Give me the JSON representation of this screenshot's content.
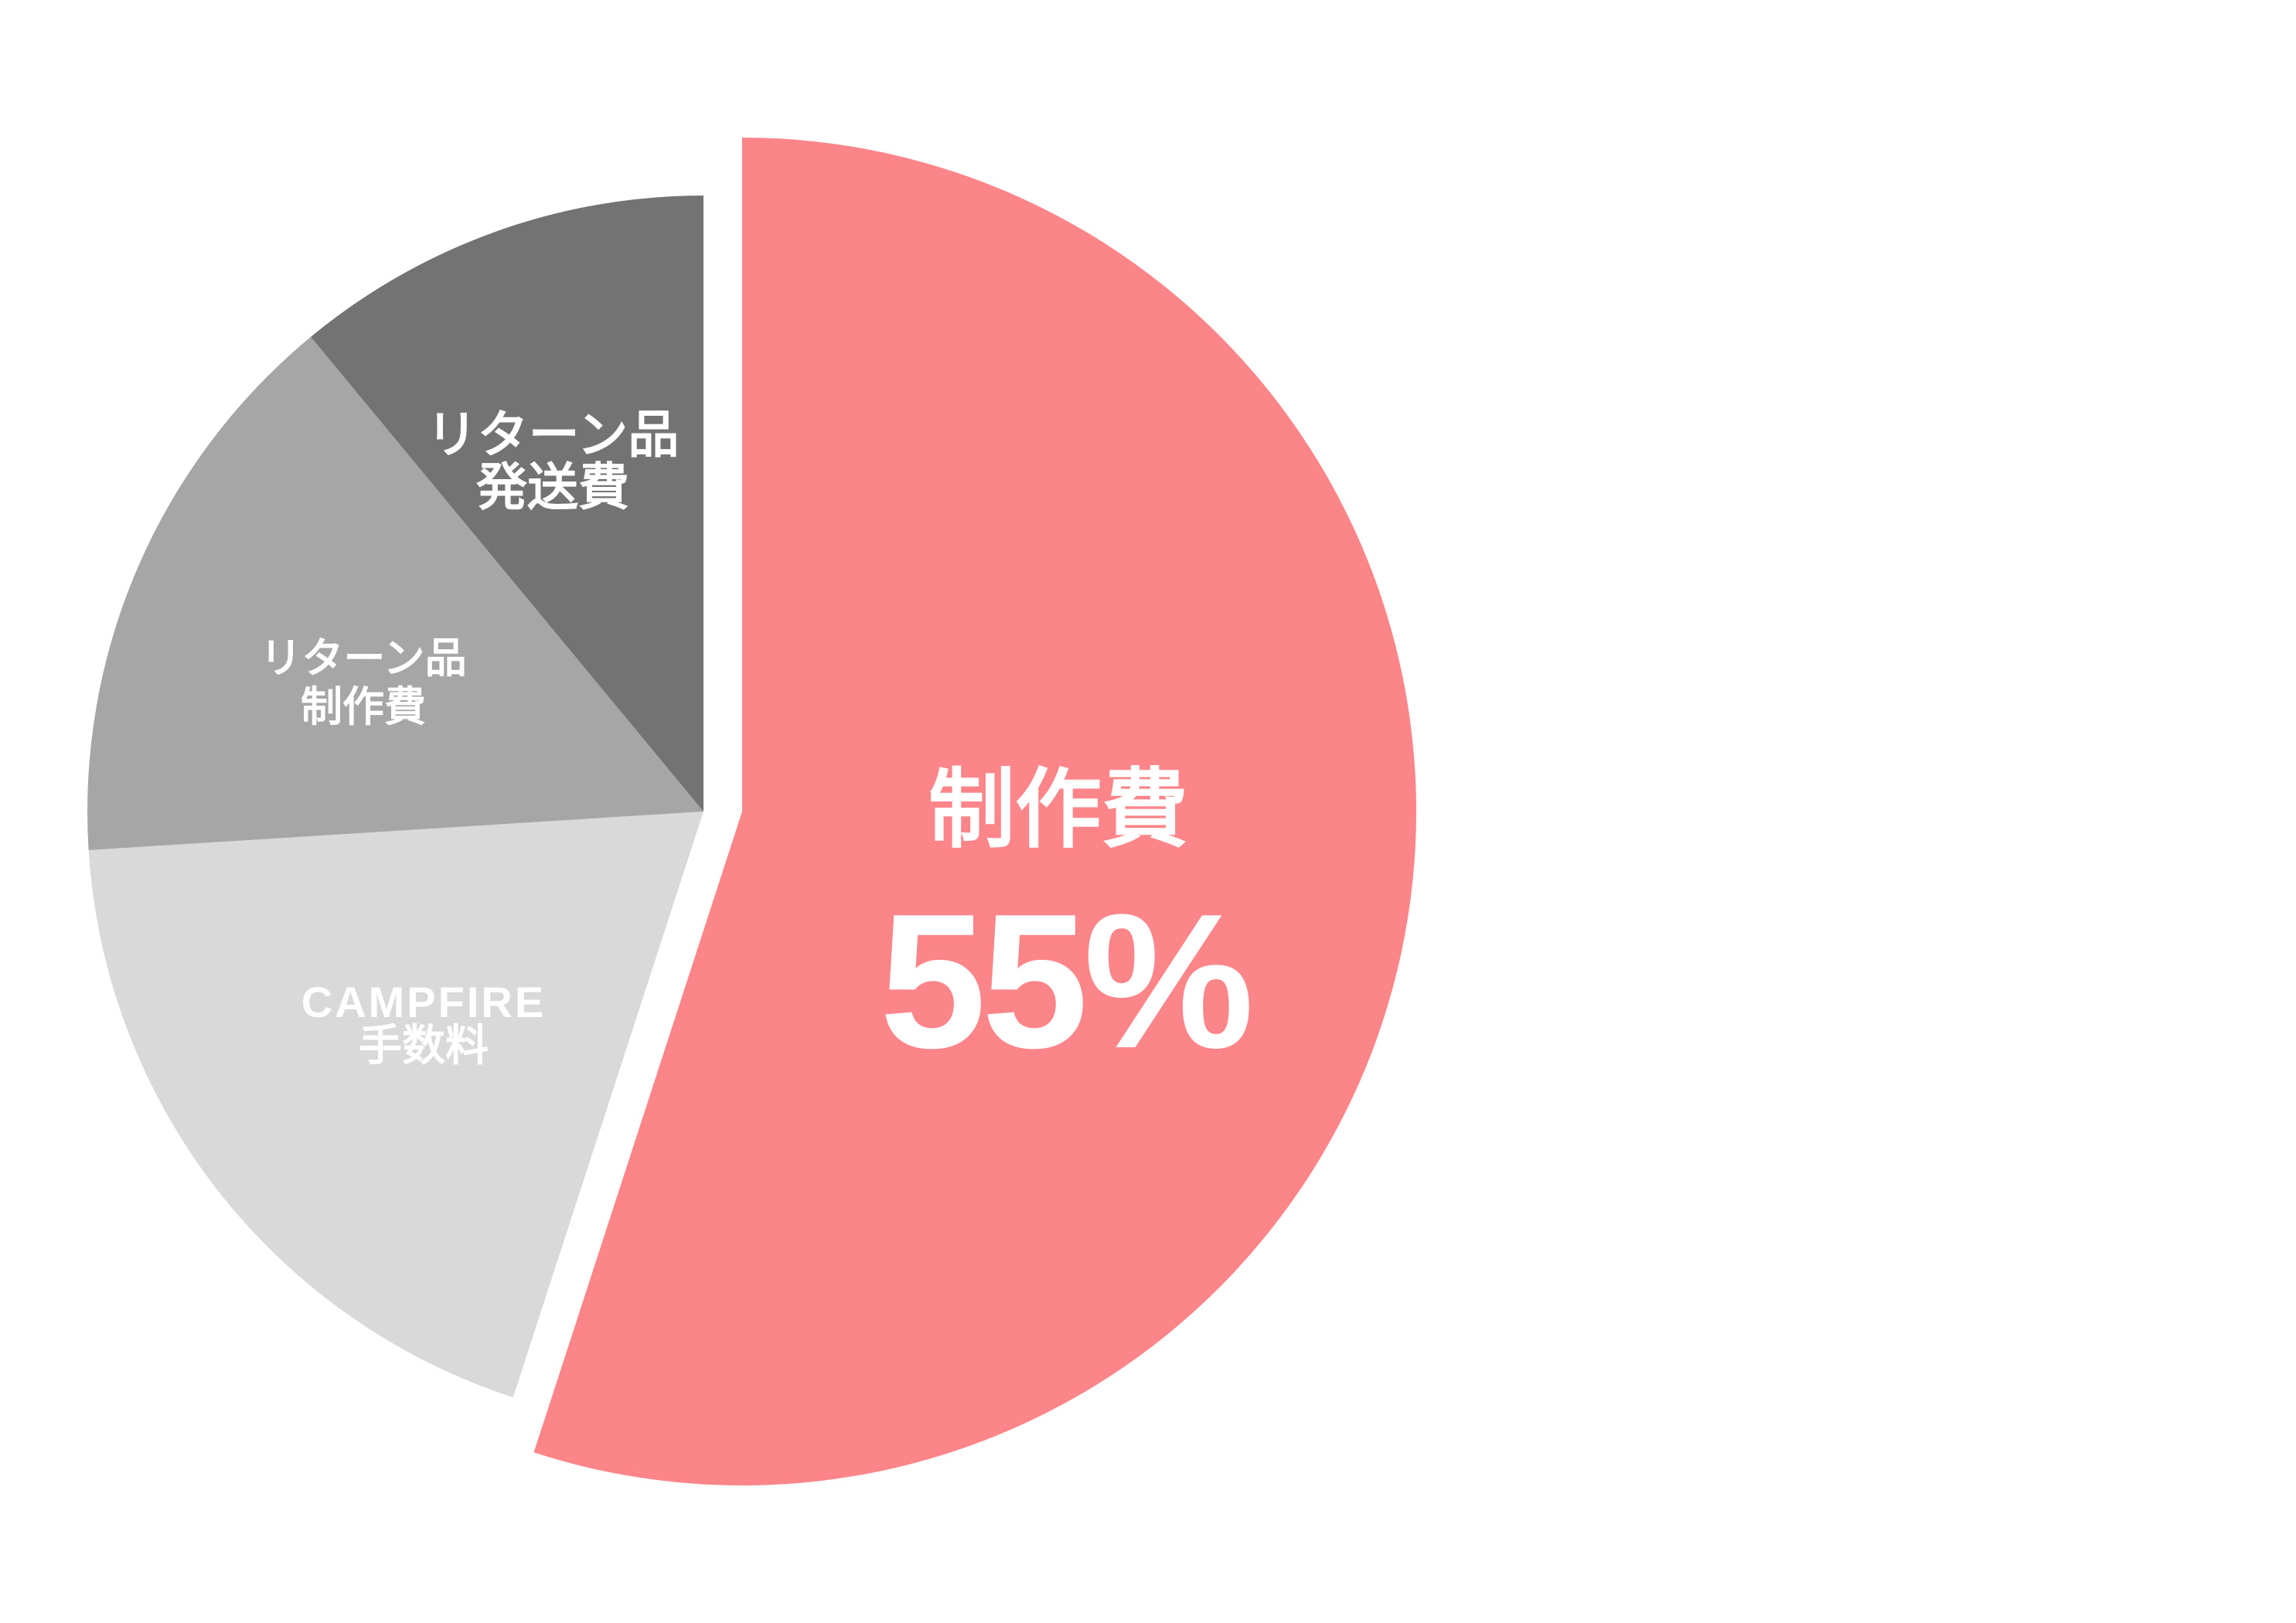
{
  "page": {
    "background_color": "#FFFFFF",
    "description_text": ""
  },
  "chart_data": {
    "type": "pie",
    "title": "",
    "unit": "%",
    "direction": "clockwise",
    "start_angle_deg": 0,
    "legend": "none",
    "values_estimated_from_angles": true,
    "slices": [
      {
        "label": "制作費",
        "label_lines": [
          "制作費"
        ],
        "pct_label": "55%",
        "value_pct": 55,
        "color": "#FB8588",
        "text_color": "#FFFFFF",
        "exploded": true
      },
      {
        "label": "CAMPFIRE手数料",
        "label_lines": [
          "CAMPFIRE",
          "手数料"
        ],
        "value_pct": 19,
        "color": "#D9D9D9",
        "text_color": "#FFFFFF",
        "exploded": false
      },
      {
        "label": "リターン品制作費",
        "label_lines": [
          "リターン品",
          "制作費"
        ],
        "value_pct": 15,
        "color": "#A6A6A6",
        "text_color": "#FFFFFF",
        "exploded": false
      },
      {
        "label": "リターン品発送費",
        "label_lines": [
          "リターン品",
          "発送費"
        ],
        "value_pct": 11,
        "color": "#737373",
        "text_color": "#FFFFFF",
        "exploded": false
      }
    ]
  }
}
